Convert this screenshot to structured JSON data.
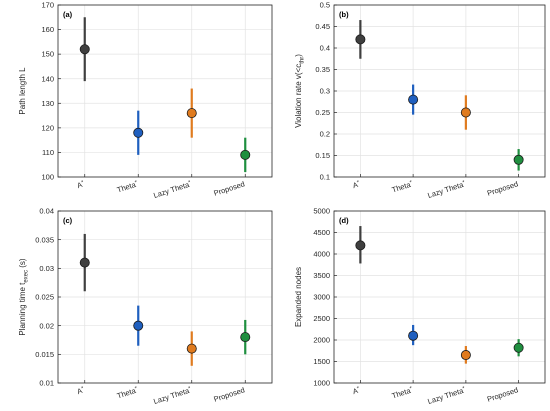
{
  "colors": {
    "A*": "#3f3f3f",
    "Theta*": "#1f5fbf",
    "Lazy Theta*": "#e07b1f",
    "Proposed": "#1f8f3f"
  },
  "chart_data": [
    {
      "type": "scatter",
      "panel": "(a)",
      "title": "",
      "xlabel": "",
      "ylabel": "Path length L",
      "categories": [
        "A*",
        "Theta*",
        "Lazy Theta*",
        "Proposed"
      ],
      "ylim": [
        100,
        170
      ],
      "yticks": [
        "100",
        "110",
        "120",
        "130",
        "140",
        "150",
        "160",
        "170"
      ],
      "ytick_values": [
        100,
        110,
        120,
        130,
        140,
        150,
        160,
        170
      ],
      "means": [
        152,
        118,
        126,
        109
      ],
      "lower": [
        139,
        109,
        116,
        102
      ],
      "upper": [
        165,
        127,
        136,
        116
      ],
      "grid": true
    },
    {
      "type": "scatter",
      "panel": "(b)",
      "title": "",
      "xlabel": "",
      "ylabel": "Violation rate v(<c_thr)",
      "categories": [
        "A*",
        "Theta*",
        "Lazy Theta*",
        "Proposed"
      ],
      "ylim": [
        0.1,
        0.5
      ],
      "yticks": [
        "0.1",
        "0.15",
        "0.2",
        "0.25",
        "0.3",
        "0.35",
        "0.4",
        "0.45",
        "0.5"
      ],
      "ytick_values": [
        0.1,
        0.15,
        0.2,
        0.25,
        0.3,
        0.35,
        0.4,
        0.45,
        0.5
      ],
      "means": [
        0.42,
        0.28,
        0.25,
        0.14
      ],
      "lower": [
        0.375,
        0.245,
        0.21,
        0.115
      ],
      "upper": [
        0.465,
        0.315,
        0.29,
        0.165
      ],
      "grid": true
    },
    {
      "type": "scatter",
      "panel": "(c)",
      "title": "",
      "xlabel": "",
      "ylabel": "Planning time t_exec (s)",
      "categories": [
        "A*",
        "Theta*",
        "Lazy Theta*",
        "Proposed"
      ],
      "ylim": [
        0.01,
        0.04
      ],
      "yticks": [
        "0.01",
        "0.015",
        "0.02",
        "0.025",
        "0.03",
        "0.035",
        "0.04"
      ],
      "ytick_values": [
        0.01,
        0.015,
        0.02,
        0.025,
        0.03,
        0.035,
        0.04
      ],
      "means": [
        0.031,
        0.02,
        0.016,
        0.018
      ],
      "lower": [
        0.026,
        0.0165,
        0.013,
        0.015
      ],
      "upper": [
        0.036,
        0.0235,
        0.019,
        0.021
      ],
      "grid": true
    },
    {
      "type": "scatter",
      "panel": "(d)",
      "title": "",
      "xlabel": "",
      "ylabel": "Expanded nodes",
      "categories": [
        "A*",
        "Theta*",
        "Lazy Theta*",
        "Proposed"
      ],
      "ylim": [
        1000,
        5000
      ],
      "yticks": [
        "1000",
        "1500",
        "2000",
        "2500",
        "3000",
        "3500",
        "4000",
        "4500",
        "5000"
      ],
      "ytick_values": [
        1000,
        1500,
        2000,
        2500,
        3000,
        3500,
        4000,
        4500,
        5000
      ],
      "means": [
        4200,
        2100,
        1650,
        1820
      ],
      "lower": [
        3780,
        1880,
        1450,
        1620
      ],
      "upper": [
        4650,
        2350,
        1860,
        2020
      ],
      "grid": true
    }
  ]
}
